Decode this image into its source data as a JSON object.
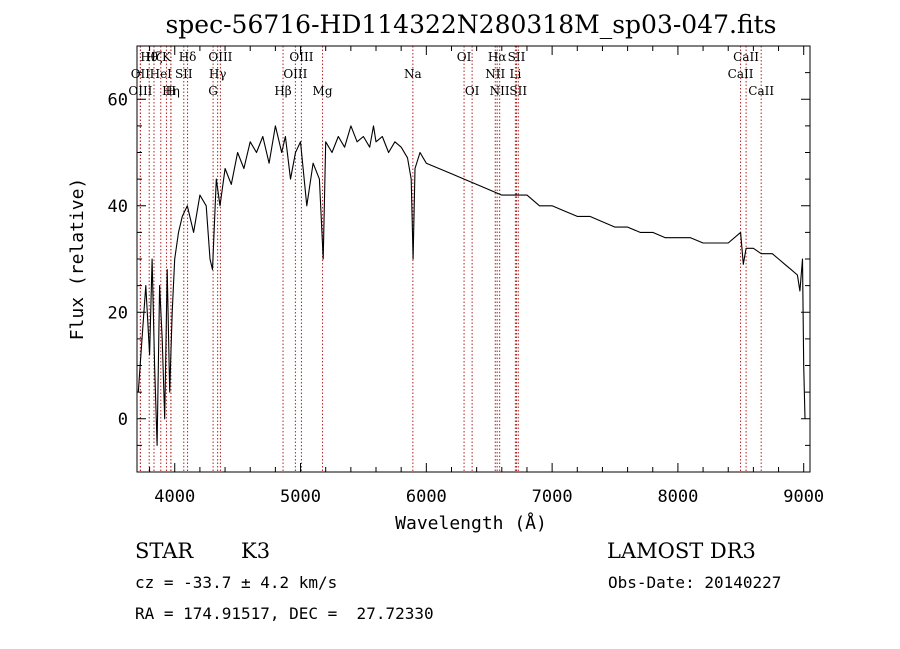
{
  "chart_data": {
    "type": "line",
    "title": "spec-56716-HD114322N280318M_sp03-047.fits",
    "xlabel": "Wavelength (Å)",
    "ylabel": "Flux (relative)",
    "xlim": [
      3700,
      9050
    ],
    "ylim": [
      -10,
      70
    ],
    "xticks": [
      4000,
      5000,
      6000,
      7000,
      8000,
      9000
    ],
    "yticks": [
      0,
      20,
      40,
      60
    ],
    "grid": false,
    "colors": {
      "spectrum": "#000000",
      "lines": "#b22222"
    },
    "series": [
      {
        "x": [
          3710,
          3740,
          3770,
          3800,
          3820,
          3840,
          3860,
          3880,
          3900,
          3920,
          3940,
          3960,
          3980,
          4000,
          4030,
          4060,
          4100,
          4150,
          4200,
          4250,
          4280,
          4300,
          4330,
          4360,
          4400,
          4450,
          4500,
          4550,
          4600,
          4650,
          4700,
          4750,
          4800,
          4850,
          4880,
          4920,
          4960,
          5000,
          5050,
          5100,
          5150,
          5180,
          5200,
          5250,
          5300,
          5350,
          5400,
          5450,
          5500,
          5550,
          5580,
          5600,
          5650,
          5700,
          5750,
          5800,
          5850,
          5880,
          5895,
          5910,
          5950,
          6000,
          6100,
          6200,
          6300,
          6400,
          6500,
          6600,
          6700,
          6800,
          6900,
          7000,
          7100,
          7200,
          7300,
          7400,
          7500,
          7600,
          7700,
          7800,
          7900,
          8000,
          8100,
          8200,
          8300,
          8400,
          8498,
          8520,
          8542,
          8560,
          8600,
          8662,
          8700,
          8750,
          8800,
          8850,
          8900,
          8950,
          8970,
          8990,
          9000,
          9010
        ],
        "values": [
          5,
          15,
          25,
          12,
          30,
          10,
          -5,
          25,
          15,
          0,
          28,
          5,
          20,
          30,
          35,
          38,
          40,
          35,
          42,
          40,
          30,
          28,
          45,
          40,
          47,
          44,
          50,
          47,
          52,
          50,
          53,
          48,
          55,
          50,
          53,
          45,
          50,
          52,
          40,
          48,
          45,
          30,
          52,
          50,
          53,
          51,
          55,
          52,
          53,
          51,
          55,
          52,
          53,
          50,
          52,
          51,
          49,
          45,
          30,
          47,
          50,
          48,
          47,
          46,
          45,
          44,
          43,
          42,
          42,
          42,
          40,
          40,
          39,
          38,
          38,
          37,
          36,
          36,
          35,
          35,
          34,
          34,
          34,
          33,
          33,
          33,
          35,
          29,
          32,
          32,
          32,
          31,
          31,
          31,
          30,
          29,
          28,
          27,
          24,
          30,
          10,
          0
        ]
      }
    ],
    "spectral_lines": [
      {
        "label": "Hθ",
        "wavelength": 3797,
        "row": 1
      },
      {
        "label": "OII",
        "wavelength": 3727,
        "row": 2
      },
      {
        "label": "OIII",
        "wavelength": 3727,
        "row": 3
      },
      {
        "label": "Hζ",
        "wavelength": 3835,
        "row": 1
      },
      {
        "label": "HeI",
        "wavelength": 3889,
        "row": 2
      },
      {
        "label": "K",
        "wavelength": 3934,
        "row": 1
      },
      {
        "label": "Hη",
        "wavelength": 3970,
        "row": 3
      },
      {
        "label": "SII",
        "wavelength": 4072,
        "row": 2
      },
      {
        "label": "H",
        "wavelength": 3969,
        "row": 3
      },
      {
        "label": "Hδ",
        "wavelength": 4102,
        "row": 1
      },
      {
        "label": "OIII",
        "wavelength": 4363,
        "row": 1
      },
      {
        "label": "Hγ",
        "wavelength": 4341,
        "row": 2
      },
      {
        "label": "G",
        "wavelength": 4305,
        "row": 3
      },
      {
        "label": "Hβ",
        "wavelength": 4861,
        "row": 3
      },
      {
        "label": "OIII",
        "wavelength": 5007,
        "row": 1
      },
      {
        "label": "OIII",
        "wavelength": 4959,
        "row": 2
      },
      {
        "label": "Mg",
        "wavelength": 5175,
        "row": 3
      },
      {
        "label": "Na",
        "wavelength": 5893,
        "row": 2
      },
      {
        "label": "OI",
        "wavelength": 6300,
        "row": 1
      },
      {
        "label": "OI",
        "wavelength": 6364,
        "row": 3
      },
      {
        "label": "Hα",
        "wavelength": 6563,
        "row": 1
      },
      {
        "label": "NII",
        "wavelength": 6548,
        "row": 2
      },
      {
        "label": "NII",
        "wavelength": 6583,
        "row": 3
      },
      {
        "label": "SII",
        "wavelength": 6717,
        "row": 1
      },
      {
        "label": "Li",
        "wavelength": 6708,
        "row": 2
      },
      {
        "label": "SII",
        "wavelength": 6731,
        "row": 3
      },
      {
        "label": "CaII",
        "wavelength": 8542,
        "row": 1
      },
      {
        "label": "CaII",
        "wavelength": 8498,
        "row": 2
      },
      {
        "label": "CaII",
        "wavelength": 8662,
        "row": 3
      }
    ]
  },
  "info": {
    "class": "STAR",
    "subclass": "K3",
    "survey": "LAMOST DR3",
    "redshift": "cz = -33.7 ± 4.2 km/s",
    "obs_date": "Obs-Date: 20140227",
    "coords": "RA = 174.91517, DEC =  27.72330"
  }
}
